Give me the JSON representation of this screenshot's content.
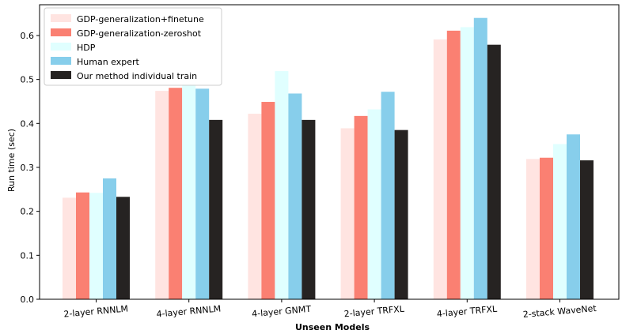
{
  "chart_data": {
    "type": "bar",
    "xlabel": "Unseen Models",
    "ylabel": "Run time (sec)",
    "ylim": [
      0,
      0.67
    ],
    "yticks": [
      "0.0",
      "0.1",
      "0.2",
      "0.3",
      "0.4",
      "0.5",
      "0.6"
    ],
    "categories": [
      "2-layer RNNLM",
      "4-layer RNNLM",
      "4-layer GNMT",
      "2-layer TRFXL",
      "4-layer TRFXL",
      "2-stack WaveNet"
    ],
    "legend_position": "top-left",
    "grid": false,
    "series": [
      {
        "name": "GDP-generalization+finetune",
        "color": "#ffe4e1",
        "values": [
          0.231,
          0.474,
          0.422,
          0.389,
          0.591,
          0.319
        ]
      },
      {
        "name": "GDP-generalization-zeroshot",
        "color": "#fa8072",
        "values": [
          0.243,
          0.481,
          0.449,
          0.417,
          0.611,
          0.322
        ]
      },
      {
        "name": "HDP",
        "color": "#e0ffff",
        "values": [
          0.242,
          0.489,
          0.519,
          0.432,
          0.619,
          0.353
        ]
      },
      {
        "name": "Human expert",
        "color": "#87ceeb",
        "values": [
          0.275,
          0.479,
          0.468,
          0.472,
          0.64,
          0.375
        ]
      },
      {
        "name": "Our method individual train",
        "color": "#262322",
        "values": [
          0.233,
          0.408,
          0.408,
          0.385,
          0.579,
          0.316
        ]
      }
    ]
  }
}
